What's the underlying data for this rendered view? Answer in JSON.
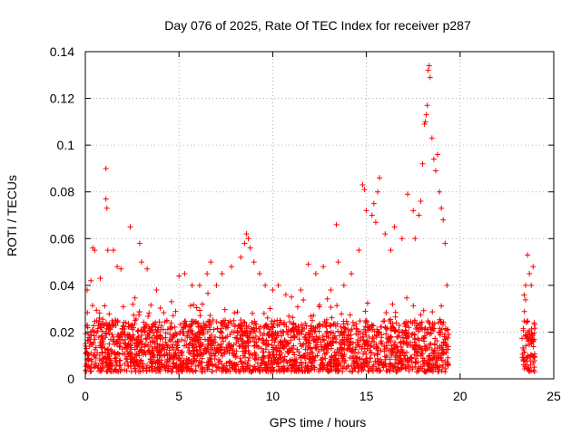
{
  "chart_data": {
    "type": "scatter",
    "title": "Day 076 of 2025, Rate Of TEC Index for receiver p287",
    "xlabel": "GPS time / hours",
    "ylabel": "ROTI / TECUs",
    "xlim": [
      0,
      25
    ],
    "ylim": [
      0,
      0.14
    ],
    "x_ticks": [
      0,
      5,
      10,
      15,
      20,
      25
    ],
    "x_tick_labels": [
      "0",
      "5",
      "10",
      "15",
      "20",
      "25"
    ],
    "y_ticks": [
      0,
      0.02,
      0.04,
      0.06,
      0.08,
      0.1,
      0.12,
      0.14
    ],
    "y_tick_labels": [
      "0",
      "0.02",
      "0.04",
      "0.06",
      "0.08",
      "0.1",
      "0.12",
      "0.14"
    ],
    "grid": true,
    "marker": "+",
    "marker_color": "#ff0000",
    "series": [
      {
        "name": "ROTI",
        "x": [
          0.1,
          0.3,
          0.4,
          0.5,
          0.8,
          1.1,
          1.1,
          1.15,
          1.2,
          1.5,
          1.7,
          1.9,
          2.4,
          2.9,
          3.0,
          3.3,
          3.8,
          4.6,
          5.0,
          5.3,
          5.7,
          6.1,
          6.5,
          6.7,
          7.0,
          7.3,
          7.8,
          8.3,
          8.5,
          8.6,
          8.7,
          8.8,
          9.0,
          9.3,
          9.6,
          10.0,
          10.3,
          10.7,
          11.0,
          11.5,
          11.9,
          12.3,
          12.7,
          13.1,
          13.4,
          13.5,
          13.8,
          14.2,
          14.6,
          14.8,
          14.9,
          15.0,
          15.3,
          15.4,
          15.5,
          15.6,
          15.7,
          16.0,
          16.3,
          16.5,
          16.9,
          17.2,
          17.5,
          17.6,
          17.8,
          17.9,
          18.0,
          18.1,
          18.15,
          18.2,
          18.25,
          18.3,
          18.35,
          18.4,
          18.5,
          18.6,
          18.7,
          18.8,
          18.9,
          19.0,
          19.1,
          19.2,
          19.3,
          23.5,
          23.6,
          23.7,
          23.8,
          23.9
        ],
        "y": [
          0.038,
          0.042,
          0.056,
          0.055,
          0.043,
          0.09,
          0.077,
          0.073,
          0.055,
          0.055,
          0.048,
          0.047,
          0.065,
          0.058,
          0.05,
          0.047,
          0.038,
          0.033,
          0.044,
          0.045,
          0.04,
          0.04,
          0.045,
          0.05,
          0.04,
          0.045,
          0.048,
          0.052,
          0.058,
          0.062,
          0.06,
          0.056,
          0.05,
          0.045,
          0.04,
          0.038,
          0.04,
          0.036,
          0.035,
          0.038,
          0.049,
          0.045,
          0.048,
          0.038,
          0.066,
          0.05,
          0.04,
          0.045,
          0.055,
          0.083,
          0.081,
          0.072,
          0.07,
          0.075,
          0.067,
          0.08,
          0.086,
          0.062,
          0.055,
          0.065,
          0.06,
          0.079,
          0.072,
          0.06,
          0.07,
          0.076,
          0.092,
          0.109,
          0.11,
          0.113,
          0.117,
          0.132,
          0.134,
          0.129,
          0.103,
          0.094,
          0.089,
          0.096,
          0.08,
          0.073,
          0.068,
          0.058,
          0.04,
          0.04,
          0.053,
          0.045,
          0.04,
          0.048
        ]
      }
    ],
    "band": {
      "description": "dense cluster of low ROTI values near baseline",
      "x_segments": [
        [
          0,
          19.4
        ],
        [
          23.3,
          24.0
        ]
      ],
      "y_range": [
        0.003,
        0.025
      ]
    }
  }
}
